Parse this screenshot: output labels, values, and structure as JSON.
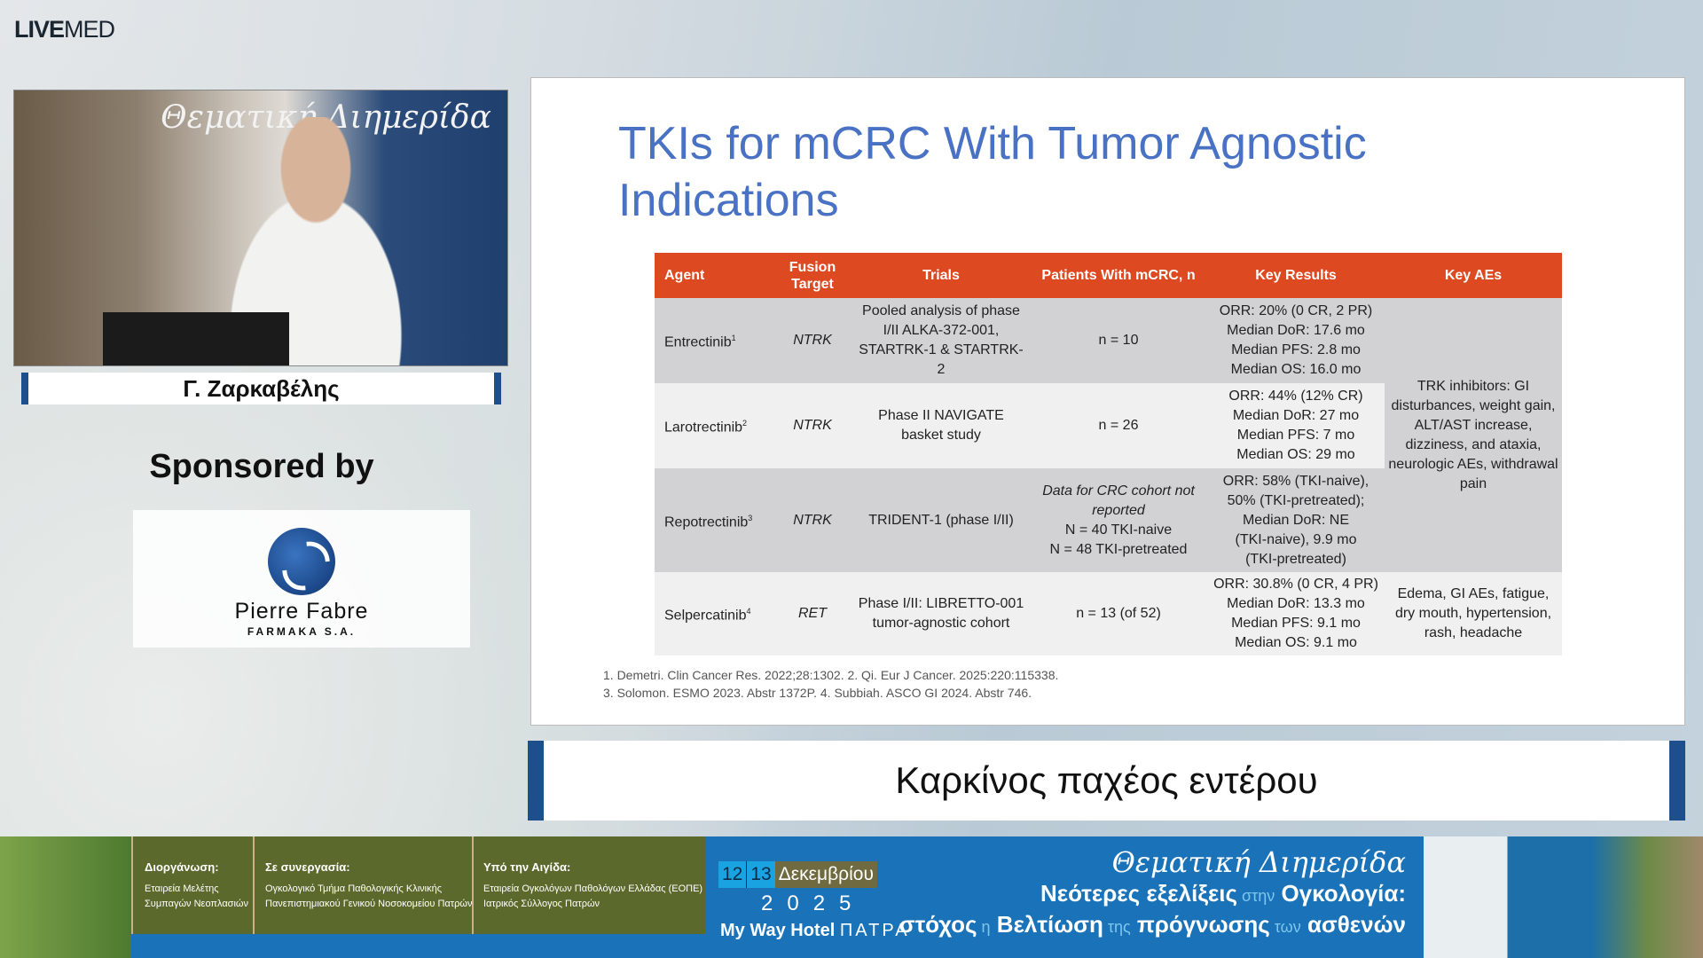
{
  "brand": {
    "logo_bold": "LIVE",
    "logo_rest": "MED"
  },
  "speaker": {
    "name": "Γ. Ζαρκαβέλης",
    "video_backdrop": "Θεματική Διημερίδα"
  },
  "sponsor": {
    "label": "Sponsored by",
    "company": "Pierre Fabre",
    "subtitle": "FARMAKA S.A."
  },
  "slide": {
    "title": "TKIs for mCRC With Tumor Agnostic Indications",
    "table": {
      "headers": [
        "Agent",
        "Fusion Target",
        "Trials",
        "Patients With mCRC, n",
        "Key Results",
        "Key AEs"
      ],
      "rows": [
        {
          "agent": "Entrectinib",
          "ref": "1",
          "target": "NTRK",
          "trials": "Pooled analysis of phase I/II ALKA-372-001, STARTRK-1 & STARTRK-2",
          "patients": "n = 10",
          "results": [
            "ORR: 20% (0 CR, 2 PR)",
            "Median DoR: 17.6 mo",
            "Median PFS: 2.8 mo",
            "Median OS: 16.0 mo"
          ]
        },
        {
          "agent": "Larotrectinib",
          "ref": "2",
          "target": "NTRK",
          "trials": "Phase II NAVIGATE basket study",
          "patients": "n = 26",
          "results": [
            "ORR: 44% (12% CR)",
            "Median DoR: 27 mo",
            "Median PFS: 7 mo",
            "Median OS: 29 mo"
          ]
        },
        {
          "agent": "Repotrectinib",
          "ref": "3",
          "target": "NTRK",
          "trials": "TRIDENT-1 (phase I/II)",
          "patients_note": "Data for CRC cohort not reported",
          "patients": [
            "N = 40 TKI-naive",
            "N = 48 TKI-pretreated"
          ],
          "results": [
            "ORR: 58% (TKI-naive),",
            "50% (TKI-pretreated);",
            "Median DoR: NE",
            "(TKI-naive), 9.9 mo",
            "(TKI-pretreated)"
          ]
        },
        {
          "agent": "Selpercatinib",
          "ref": "4",
          "target": "RET",
          "trials": "Phase I/II: LIBRETTO-001 tumor-agnostic cohort",
          "patients": "n = 13 (of 52)",
          "results": [
            "ORR: 30.8% (0 CR, 4 PR)",
            "Median DoR: 13.3 mo",
            "Median PFS: 9.1 mo",
            "Median OS: 9.1 mo"
          ],
          "aes": "Edema, GI AEs, fatigue, dry mouth, hypertension, rash, headache"
        }
      ],
      "trk_aes": "TRK inhibitors: GI disturbances, weight gain, ALT/AST increase, dizziness, and ataxia, neurologic AEs, withdrawal pain"
    },
    "footnotes": [
      "1. Demetri. Clin Cancer Res. 2022;28:1302. 2. Qi. Eur J Cancer. 2025:220:115338.",
      "3. Solomon. ESMO 2023. Abstr 1372P. 4. Subbiah. ASCO GI 2024. Abstr 746."
    ]
  },
  "caption": "Καρκίνος παχέος εντέρου",
  "banner": {
    "organizer": {
      "heading": "Διοργάνωση:",
      "lines": [
        "Εταιρεία Μελέτης",
        "Συμπαγών Νεοπλασιών"
      ]
    },
    "cooperation": {
      "heading": "Σε συνεργασία:",
      "lines": [
        "Ογκολογικό Τμήμα Παθολογικής Κλινικής",
        "Πανεπιστημιακού Γενικού Νοσοκομείου Πατρών"
      ]
    },
    "auspices": {
      "heading": "Υπό την Αιγίδα:",
      "lines": [
        "Εταιρεία Ογκολόγων Παθολόγων Ελλάδας (ΕΟΠΕ)",
        "Ιατρικός Σύλλογος Πατρών"
      ]
    },
    "day1": "12",
    "day2": "13",
    "month": "Δεκεμβρίου",
    "year": "2025",
    "venue_bold": "My Way Hotel",
    "venue_city": "ΠΑΤΡΑ",
    "event_title": "Θεματική Διημερίδα",
    "subtitle_line1": [
      {
        "t": "Νεότερες εξελίξεις",
        "s": false
      },
      {
        "t": "στην",
        "s": true
      },
      {
        "t": "Ογκολογία:",
        "s": false
      }
    ],
    "subtitle_line2": [
      {
        "t": "στόχος",
        "s": false
      },
      {
        "t": "η",
        "s": true
      },
      {
        "t": "Βελτίωση",
        "s": false
      },
      {
        "t": "της",
        "s": true
      },
      {
        "t": "πρόγνωσης",
        "s": false
      },
      {
        "t": "των",
        "s": true
      },
      {
        "t": "ασθενών",
        "s": false
      }
    ]
  },
  "colors": {
    "title_blue": "#4a72c4",
    "header_orange": "#dd4a21",
    "banner_blue": "#1a73b8",
    "accent_navy": "#1d4f8c"
  }
}
